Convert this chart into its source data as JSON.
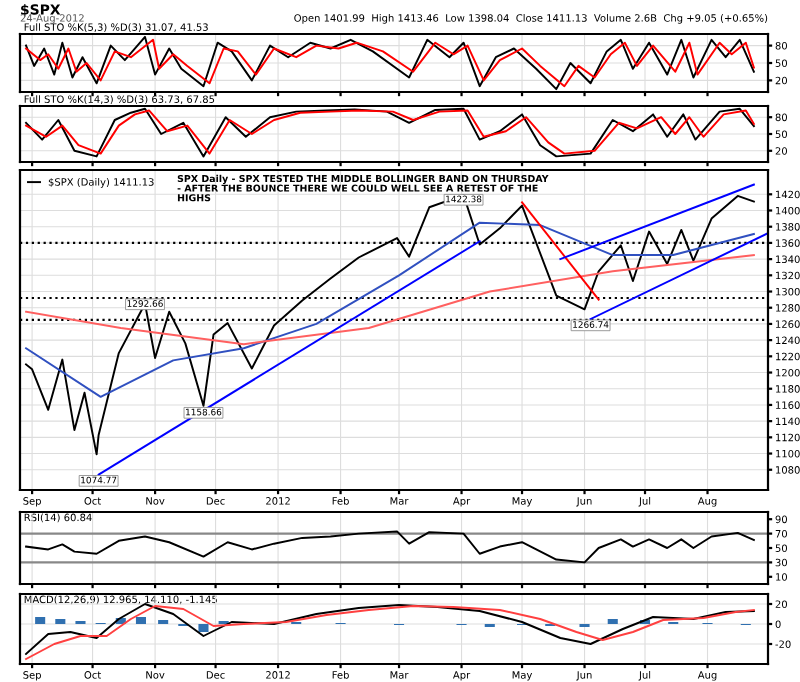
{
  "chart_data": [
    {
      "type": "line",
      "title": "$SPX",
      "subtitle": "24-Aug-2012",
      "annotations": [
        "Open 1401.99  High 1413.46  Low 1398.04  Close 1411.13  Volume 2.6B  Chg +9.05 (+0.65%)",
        "Full STO %K(5,3) %D(3) 31.07, 41.53"
      ],
      "xlim": [
        "2011-08-26",
        "2012-08-31"
      ],
      "ylim": [
        0,
        100
      ],
      "yticks": [
        20,
        50,
        80
      ],
      "tick_labels": "y",
      "grid": true,
      "xticks": [
        "2011-09-01",
        "2011-10-01",
        "2011-11-01",
        "2011-12-01",
        "2012-01-01",
        "2012-02-01",
        "2012-03-01",
        "2012-04-01",
        "2012-05-01",
        "2012-06-01",
        "2012-07-01",
        "2012-08-01"
      ],
      "series": [
        {
          "color": "#000000",
          "x": [
            "2011-08-29",
            "2011-09-02",
            "2011-09-07",
            "2011-09-12",
            "2011-09-16",
            "2011-09-21",
            "2011-09-26",
            "2011-10-03",
            "2011-10-10",
            "2011-10-17",
            "2011-10-27",
            "2011-11-01",
            "2011-11-08",
            "2011-11-14",
            "2011-11-25",
            "2011-12-02",
            "2011-12-09",
            "2011-12-19",
            "2011-12-28",
            "2012-01-06",
            "2012-01-17",
            "2012-01-27",
            "2012-02-06",
            "2012-02-17",
            "2012-03-06",
            "2012-03-15",
            "2012-03-26",
            "2012-04-02",
            "2012-04-10",
            "2012-04-18",
            "2012-04-27",
            "2012-05-08",
            "2012-05-18",
            "2012-05-25",
            "2012-06-04",
            "2012-06-12",
            "2012-06-19",
            "2012-06-25",
            "2012-07-03",
            "2012-07-12",
            "2012-07-19",
            "2012-07-25",
            "2012-08-03",
            "2012-08-10",
            "2012-08-17",
            "2012-08-24"
          ],
          "values": [
            80,
            45,
            75,
            30,
            85,
            25,
            60,
            15,
            80,
            55,
            95,
            30,
            75,
            40,
            10,
            85,
            70,
            20,
            80,
            60,
            85,
            75,
            90,
            70,
            25,
            90,
            60,
            85,
            10,
            60,
            75,
            40,
            5,
            50,
            15,
            70,
            90,
            40,
            85,
            30,
            90,
            25,
            90,
            60,
            90,
            35
          ]
        },
        {
          "color": "#ff0000",
          "x": [
            "2011-08-29",
            "2011-09-05",
            "2011-09-09",
            "2011-09-14",
            "2011-09-19",
            "2011-09-23",
            "2011-09-28",
            "2011-10-05",
            "2011-10-12",
            "2011-10-20",
            "2011-10-31",
            "2011-11-03",
            "2011-11-10",
            "2011-11-17",
            "2011-11-28",
            "2011-12-05",
            "2011-12-12",
            "2011-12-21",
            "2011-12-30",
            "2012-01-10",
            "2012-01-20",
            "2012-01-31",
            "2012-02-09",
            "2012-02-22",
            "2012-03-08",
            "2012-03-19",
            "2012-03-28",
            "2012-04-04",
            "2012-04-12",
            "2012-04-20",
            "2012-05-01",
            "2012-05-10",
            "2012-05-22",
            "2012-05-29",
            "2012-06-06",
            "2012-06-14",
            "2012-06-21",
            "2012-06-27",
            "2012-07-05",
            "2012-07-16",
            "2012-07-23",
            "2012-07-27",
            "2012-08-07",
            "2012-08-13",
            "2012-08-20",
            "2012-08-24"
          ],
          "values": [
            75,
            55,
            65,
            40,
            75,
            35,
            50,
            20,
            70,
            60,
            90,
            40,
            65,
            45,
            15,
            75,
            70,
            30,
            75,
            60,
            80,
            75,
            85,
            70,
            35,
            85,
            65,
            80,
            20,
            55,
            75,
            45,
            10,
            45,
            25,
            65,
            85,
            45,
            80,
            35,
            85,
            30,
            85,
            65,
            85,
            42
          ]
        }
      ]
    },
    {
      "type": "line",
      "title": "Full STO %K(14,3) %D(3) 63.73, 67.85",
      "xlim": [
        "2011-08-26",
        "2012-08-31"
      ],
      "ylim": [
        0,
        100
      ],
      "yticks": [
        20,
        50,
        80
      ],
      "tick_labels": "y",
      "grid": true,
      "xticks": [
        "2011-09-01",
        "2011-10-01",
        "2011-11-01",
        "2011-12-01",
        "2012-01-01",
        "2012-02-01",
        "2012-03-01",
        "2012-04-01",
        "2012-05-01",
        "2012-06-01",
        "2012-07-01",
        "2012-08-01"
      ],
      "series": [
        {
          "color": "#000000",
          "x": [
            "2011-08-29",
            "2011-09-06",
            "2011-09-14",
            "2011-09-22",
            "2011-10-03",
            "2011-10-12",
            "2011-10-20",
            "2011-10-27",
            "2011-11-04",
            "2011-11-15",
            "2011-11-25",
            "2011-12-06",
            "2011-12-16",
            "2011-12-28",
            "2012-01-10",
            "2012-01-25",
            "2012-02-08",
            "2012-02-24",
            "2012-03-06",
            "2012-03-19",
            "2012-04-02",
            "2012-04-10",
            "2012-04-20",
            "2012-05-01",
            "2012-05-10",
            "2012-05-18",
            "2012-06-04",
            "2012-06-15",
            "2012-06-25",
            "2012-07-05",
            "2012-07-12",
            "2012-07-20",
            "2012-07-26",
            "2012-08-07",
            "2012-08-17",
            "2012-08-24"
          ],
          "values": [
            70,
            40,
            75,
            20,
            10,
            75,
            88,
            95,
            50,
            70,
            10,
            80,
            45,
            80,
            90,
            92,
            94,
            90,
            70,
            93,
            95,
            40,
            55,
            85,
            30,
            10,
            15,
            75,
            55,
            85,
            45,
            85,
            40,
            90,
            95,
            64
          ]
        },
        {
          "color": "#ff0000",
          "x": [
            "2011-08-29",
            "2011-09-08",
            "2011-09-16",
            "2011-09-24",
            "2011-10-05",
            "2011-10-14",
            "2011-10-22",
            "2011-10-29",
            "2011-11-07",
            "2011-11-17",
            "2011-11-28",
            "2011-12-08",
            "2011-12-19",
            "2011-12-30",
            "2012-01-12",
            "2012-01-27",
            "2012-02-10",
            "2012-02-27",
            "2012-03-08",
            "2012-03-21",
            "2012-04-04",
            "2012-04-12",
            "2012-04-23",
            "2012-05-03",
            "2012-05-14",
            "2012-05-22",
            "2012-06-06",
            "2012-06-18",
            "2012-06-27",
            "2012-07-09",
            "2012-07-16",
            "2012-07-23",
            "2012-07-30",
            "2012-08-09",
            "2012-08-20",
            "2012-08-24"
          ],
          "values": [
            65,
            45,
            65,
            30,
            15,
            65,
            85,
            92,
            55,
            65,
            15,
            75,
            50,
            75,
            88,
            90,
            92,
            90,
            75,
            90,
            92,
            45,
            55,
            80,
            35,
            15,
            20,
            70,
            60,
            80,
            50,
            80,
            45,
            85,
            92,
            68
          ]
        }
      ]
    },
    {
      "type": "line",
      "legend": "top left",
      "xlim": [
        "2011-08-26",
        "2012-08-31"
      ],
      "ylim": [
        1055,
        1450
      ],
      "yticks": [
        1080,
        1100,
        1120,
        1140,
        1160,
        1180,
        1200,
        1220,
        1240,
        1260,
        1280,
        1300,
        1320,
        1340,
        1360,
        1380,
        1400,
        1420
      ],
      "grid": true,
      "xticks": [
        {
          "value": "2011-09-01",
          "label": "Sep"
        },
        {
          "value": "2011-10-01",
          "label": "Oct"
        },
        {
          "value": "2011-11-01",
          "label": "Nov"
        },
        {
          "value": "2011-12-01",
          "label": "Dec"
        },
        {
          "value": "2012-01-01",
          "label": "2012"
        },
        {
          "value": "2012-02-01",
          "label": "Feb"
        },
        {
          "value": "2012-03-01",
          "label": "Mar"
        },
        {
          "value": "2012-04-01",
          "label": "Apr"
        },
        {
          "value": "2012-05-01",
          "label": "May"
        },
        {
          "value": "2012-06-01",
          "label": "Jun"
        },
        {
          "value": "2012-07-01",
          "label": "Jul"
        },
        {
          "value": "2012-08-01",
          "label": "Aug"
        }
      ],
      "annotations": [
        "SPX Daily - SPX TESTED THE MIDDLE BOLLINGER BAND ON THURSDAY",
        "- AFTER THE BOUNCE THERE WE COULD WELL SEE A RETEST OF THE",
        "HIGHS",
        {
          "text": "1074.77",
          "x": "2011-10-04",
          "y": 1075
        },
        {
          "text": "1292.66",
          "x": "2011-10-27",
          "y": 1293
        },
        {
          "text": "1158.66",
          "x": "2011-11-25",
          "y": 1159
        },
        {
          "text": "1422.38",
          "x": "2012-04-02",
          "y": 1422
        },
        {
          "text": "1266.74",
          "x": "2012-06-04",
          "y": 1267
        }
      ],
      "ref_lines": [
        {
          "axis": "y",
          "value": 1360,
          "color": "#000000",
          "line_style": "dotted"
        },
        {
          "axis": "y",
          "value": 1292,
          "color": "#000000",
          "line_style": "dotted"
        },
        {
          "axis": "y",
          "value": 1265,
          "color": "#000000",
          "line_style": "dotted"
        }
      ],
      "series": [
        {
          "name": "$SPX (Daily) 1411.13",
          "color": "#000000",
          "x": [
            "2011-08-29",
            "2011-09-01",
            "2011-09-09",
            "2011-09-16",
            "2011-09-22",
            "2011-09-27",
            "2011-10-03",
            "2011-10-04",
            "2011-10-14",
            "2011-10-27",
            "2011-11-01",
            "2011-11-08",
            "2011-11-16",
            "2011-11-25",
            "2011-11-30",
            "2011-12-07",
            "2011-12-19",
            "2011-12-30",
            "2012-01-13",
            "2012-01-27",
            "2012-02-10",
            "2012-02-29",
            "2012-03-06",
            "2012-03-16",
            "2012-04-02",
            "2012-04-10",
            "2012-04-20",
            "2012-05-01",
            "2012-05-18",
            "2012-06-01",
            "2012-06-08",
            "2012-06-19",
            "2012-06-25",
            "2012-07-03",
            "2012-07-12",
            "2012-07-19",
            "2012-07-25",
            "2012-08-03",
            "2012-08-16",
            "2012-08-24"
          ],
          "values": [
            1210,
            1204,
            1154,
            1216,
            1129,
            1175,
            1099,
            1123,
            1224,
            1285,
            1218,
            1275,
            1236,
            1159,
            1247,
            1261,
            1205,
            1258,
            1289,
            1316,
            1342,
            1366,
            1343,
            1404,
            1419,
            1358,
            1378,
            1406,
            1295,
            1278,
            1325,
            1357,
            1313,
            1374,
            1334,
            1376,
            1338,
            1390,
            1418,
            1411
          ]
        },
        {
          "color": "#3050c0",
          "x": [
            "2011-08-29",
            "2011-10-05",
            "2011-11-10",
            "2011-12-15",
            "2012-01-20",
            "2012-03-01",
            "2012-04-10",
            "2012-05-10",
            "2012-06-15",
            "2012-07-15",
            "2012-08-24"
          ],
          "values": [
            1230,
            1170,
            1215,
            1230,
            1260,
            1320,
            1385,
            1382,
            1345,
            1345,
            1371
          ]
        },
        {
          "color": "#ff6060",
          "x": [
            "2011-08-29",
            "2011-10-15",
            "2011-12-15",
            "2012-02-15",
            "2012-04-15",
            "2012-06-15",
            "2012-08-24"
          ],
          "values": [
            1275,
            1255,
            1235,
            1255,
            1300,
            1325,
            1345
          ]
        },
        {
          "color": "#0000ff",
          "x": [
            "2011-10-04",
            "2012-04-10"
          ],
          "values": [
            1074,
            1362
          ]
        },
        {
          "color": "#ff0000",
          "x": [
            "2012-05-01",
            "2012-06-08"
          ],
          "values": [
            1410,
            1290
          ]
        },
        {
          "color": "#0000ff",
          "x": [
            "2012-06-04",
            "2012-08-31"
          ],
          "values": [
            1266,
            1372
          ]
        },
        {
          "color": "#0000ff",
          "x": [
            "2012-05-20",
            "2012-08-24"
          ],
          "values": [
            1340,
            1432
          ]
        }
      ]
    },
    {
      "type": "line",
      "title": "RSI(14) 60.84",
      "xlim": [
        "2011-08-26",
        "2012-08-31"
      ],
      "ylim": [
        0,
        100
      ],
      "yticks": [
        10,
        30,
        50,
        70,
        90
      ],
      "tick_labels": "y",
      "grid": "x",
      "xticks": [
        "2011-09-01",
        "2011-10-01",
        "2011-11-01",
        "2011-12-01",
        "2012-01-01",
        "2012-02-01",
        "2012-03-01",
        "2012-04-01",
        "2012-05-01",
        "2012-06-01",
        "2012-07-01",
        "2012-08-01"
      ],
      "ref_lines": [
        {
          "axis": "y",
          "value": 70,
          "color": "#888888",
          "line_style": "solid"
        },
        {
          "axis": "y",
          "value": 30,
          "color": "#888888",
          "line_style": "solid"
        }
      ],
      "series": [
        {
          "color": "#000000",
          "x": [
            "2011-08-29",
            "2011-09-09",
            "2011-09-16",
            "2011-09-22",
            "2011-10-03",
            "2011-10-14",
            "2011-10-27",
            "2011-11-08",
            "2011-11-25",
            "2011-12-07",
            "2011-12-19",
            "2011-12-30",
            "2012-01-13",
            "2012-01-27",
            "2012-02-10",
            "2012-02-29",
            "2012-03-06",
            "2012-03-16",
            "2012-04-02",
            "2012-04-10",
            "2012-04-20",
            "2012-05-01",
            "2012-05-18",
            "2012-06-01",
            "2012-06-08",
            "2012-06-19",
            "2012-06-25",
            "2012-07-03",
            "2012-07-12",
            "2012-07-19",
            "2012-07-25",
            "2012-08-03",
            "2012-08-16",
            "2012-08-24"
          ],
          "values": [
            52,
            48,
            55,
            45,
            42,
            60,
            66,
            58,
            38,
            58,
            48,
            56,
            64,
            66,
            70,
            73,
            56,
            72,
            70,
            42,
            52,
            58,
            34,
            30,
            50,
            62,
            52,
            62,
            50,
            62,
            50,
            66,
            71,
            61
          ]
        }
      ]
    },
    {
      "type": "line",
      "title": "MACD(12,26,9) 12.965, 14.110, -1.145",
      "xlim": [
        "2011-08-26",
        "2012-08-31"
      ],
      "ylim": [
        -40,
        30
      ],
      "yticks": [
        -20,
        0,
        20
      ],
      "grid": true,
      "xticks": [
        {
          "value": "2011-09-01",
          "label": "Sep"
        },
        {
          "value": "2011-10-01",
          "label": "Oct"
        },
        {
          "value": "2011-11-01",
          "label": "Nov"
        },
        {
          "value": "2011-12-01",
          "label": "Dec"
        },
        {
          "value": "2012-01-01",
          "label": "2012"
        },
        {
          "value": "2012-02-01",
          "label": "Feb"
        },
        {
          "value": "2012-03-01",
          "label": "Mar"
        },
        {
          "value": "2012-04-01",
          "label": "Apr"
        },
        {
          "value": "2012-05-01",
          "label": "May"
        },
        {
          "value": "2012-06-01",
          "label": "Jun"
        },
        {
          "value": "2012-07-01",
          "label": "Jul"
        },
        {
          "value": "2012-08-01",
          "label": "Aug"
        }
      ],
      "series": [
        {
          "type": "bar",
          "color": "#3070b0",
          "x": [
            "2011-09-05",
            "2011-09-15",
            "2011-09-25",
            "2011-10-05",
            "2011-10-15",
            "2011-10-25",
            "2011-11-05",
            "2011-11-15",
            "2011-11-25",
            "2011-12-05",
            "2011-12-20",
            "2012-01-10",
            "2012-02-01",
            "2012-03-01",
            "2012-04-01",
            "2012-04-15",
            "2012-05-01",
            "2012-05-15",
            "2012-06-01",
            "2012-06-15",
            "2012-07-01",
            "2012-07-15",
            "2012-08-01",
            "2012-08-20"
          ],
          "values": [
            7,
            5,
            3,
            1,
            6,
            7,
            4,
            -2,
            -8,
            3,
            null,
            2,
            1,
            -1,
            -1,
            -3,
            -1,
            -2,
            -3,
            5,
            4,
            2,
            1,
            -1
          ]
        },
        {
          "color": "#000000",
          "x": [
            "2011-08-29",
            "2011-09-09",
            "2011-09-20",
            "2011-10-03",
            "2011-10-14",
            "2011-10-27",
            "2011-11-10",
            "2011-11-25",
            "2011-12-09",
            "2011-12-30",
            "2012-01-20",
            "2012-02-10",
            "2012-03-01",
            "2012-03-20",
            "2012-04-10",
            "2012-05-01",
            "2012-05-20",
            "2012-06-04",
            "2012-06-20",
            "2012-07-05",
            "2012-07-25",
            "2012-08-10",
            "2012-08-24"
          ],
          "values": [
            -30,
            -10,
            -8,
            -14,
            5,
            20,
            10,
            -12,
            2,
            0,
            10,
            16,
            19,
            17,
            13,
            2,
            -14,
            -20,
            -5,
            7,
            5,
            12,
            13
          ]
        },
        {
          "color": "#ff4040",
          "x": [
            "2011-08-29",
            "2011-09-12",
            "2011-09-25",
            "2011-10-08",
            "2011-10-20",
            "2011-11-01",
            "2011-11-15",
            "2011-11-30",
            "2011-12-15",
            "2012-01-05",
            "2012-01-25",
            "2012-02-15",
            "2012-03-08",
            "2012-03-28",
            "2012-04-20",
            "2012-05-10",
            "2012-05-28",
            "2012-06-10",
            "2012-06-25",
            "2012-07-10",
            "2012-07-30",
            "2012-08-15",
            "2012-08-24"
          ],
          "values": [
            -35,
            -20,
            -12,
            -12,
            5,
            18,
            15,
            -2,
            0,
            2,
            9,
            14,
            18,
            17,
            14,
            5,
            -8,
            -16,
            -8,
            4,
            6,
            12,
            14
          ]
        }
      ]
    }
  ]
}
